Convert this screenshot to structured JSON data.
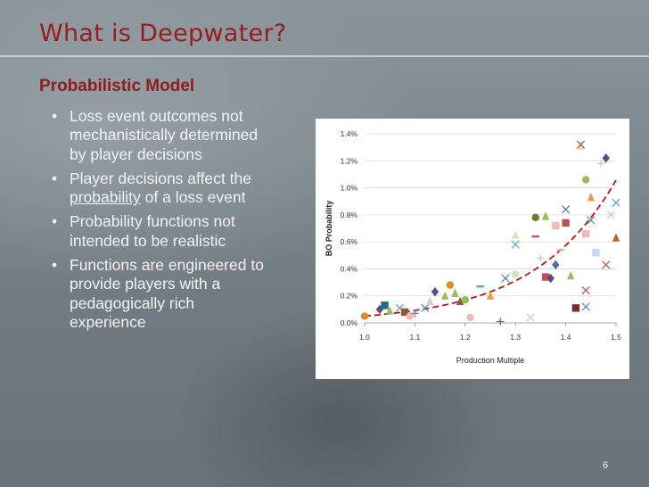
{
  "slide": {
    "title": "What is Deepwater?",
    "subtitle": "Probabilistic Model",
    "bullets": [
      {
        "text": "Loss event outcomes not mechanistically determined by player decisions"
      },
      {
        "pre": "Player decisions affect the ",
        "underlined": "probability",
        "post": " of a loss event"
      },
      {
        "text": "Probability functions not intended to be realistic"
      },
      {
        "text": "Functions are engineered to provide players with a pedagogically rich experience"
      }
    ],
    "bullet_glyph": "•",
    "page_number": "6"
  },
  "colors": {
    "title": "#9a1c1c",
    "subtitle": "#8e1f1a",
    "bullet_text": "#f4f4f4",
    "trend_line": "#c0141a"
  },
  "chart_data": {
    "type": "scatter",
    "xlabel": "Production Multiple",
    "ylabel": "BO Probability",
    "xlim": [
      1.0,
      1.5
    ],
    "ylim": [
      0.0,
      0.014
    ],
    "xticks": [
      "1.0",
      "1.1",
      "1.2",
      "1.3",
      "1.4",
      "1.5"
    ],
    "yticks": [
      "0.0%",
      "0.2%",
      "0.4%",
      "0.6%",
      "0.8%",
      "1.0%",
      "1.2%",
      "1.4%"
    ],
    "grid": "horizontal",
    "legend": "none",
    "trendline": {
      "style": "dashed",
      "shape": "exponential",
      "y0": 0.0005,
      "k": 6.1
    },
    "points": [
      {
        "x": 1.0,
        "y": 0.0005,
        "m": "circle",
        "c": "#e08a2c"
      },
      {
        "x": 1.03,
        "y": 0.001,
        "m": "diamond",
        "c": "#5b4a8c"
      },
      {
        "x": 1.04,
        "y": 0.0013,
        "m": "square",
        "c": "#1f6f79"
      },
      {
        "x": 1.05,
        "y": 0.0009,
        "m": "triangle",
        "c": "#9bbb59"
      },
      {
        "x": 1.07,
        "y": 0.0011,
        "m": "x",
        "c": "#6f8fc4"
      },
      {
        "x": 1.08,
        "y": 0.0008,
        "m": "square",
        "c": "#8b5a3c"
      },
      {
        "x": 1.09,
        "y": 0.0005,
        "m": "circle",
        "c": "#f2b8b8"
      },
      {
        "x": 1.1,
        "y": 0.0007,
        "m": "plus",
        "c": "#4f7fbf"
      },
      {
        "x": 1.12,
        "y": 0.0011,
        "m": "x",
        "c": "#4f7fbf"
      },
      {
        "x": 1.13,
        "y": 0.0016,
        "m": "triangle",
        "c": "#cfcfcf"
      },
      {
        "x": 1.14,
        "y": 0.0023,
        "m": "diamond",
        "c": "#5b4a8c"
      },
      {
        "x": 1.16,
        "y": 0.002,
        "m": "triangle",
        "c": "#9bbb59"
      },
      {
        "x": 1.17,
        "y": 0.0028,
        "m": "circle",
        "c": "#e08a2c"
      },
      {
        "x": 1.18,
        "y": 0.0022,
        "m": "triangle",
        "c": "#9bbb59"
      },
      {
        "x": 1.19,
        "y": 0.0016,
        "m": "triangle",
        "c": "#8b5a3c"
      },
      {
        "x": 1.2,
        "y": 0.0017,
        "m": "circle",
        "c": "#9bbb59"
      },
      {
        "x": 1.21,
        "y": 0.0004,
        "m": "circle",
        "c": "#f2b8b8"
      },
      {
        "x": 1.23,
        "y": 0.0027,
        "m": "dash",
        "c": "#4bacc6"
      },
      {
        "x": 1.25,
        "y": 0.002,
        "m": "triangle",
        "c": "#f79646"
      },
      {
        "x": 1.27,
        "y": 0.0001,
        "m": "plus",
        "c": "#8b5a3c"
      },
      {
        "x": 1.28,
        "y": 0.0033,
        "m": "x",
        "c": "#4f7fbf"
      },
      {
        "x": 1.3,
        "y": 0.0036,
        "m": "circle",
        "c": "#d8e4bc"
      },
      {
        "x": 1.3,
        "y": 0.0058,
        "m": "x",
        "c": "#4bacc6"
      },
      {
        "x": 1.3,
        "y": 0.0065,
        "m": "triangle",
        "c": "#d8e4bc"
      },
      {
        "x": 1.33,
        "y": 0.0004,
        "m": "x",
        "c": "#f2b8b8"
      },
      {
        "x": 1.34,
        "y": 0.0078,
        "m": "circle",
        "c": "#6b7f2b"
      },
      {
        "x": 1.34,
        "y": 0.0064,
        "m": "dash",
        "c": "#c0504d"
      },
      {
        "x": 1.35,
        "y": 0.0048,
        "m": "plus",
        "c": "#b7c7e0"
      },
      {
        "x": 1.36,
        "y": 0.0079,
        "m": "triangle",
        "c": "#9bbb59"
      },
      {
        "x": 1.36,
        "y": 0.0034,
        "m": "square",
        "c": "#c0504d"
      },
      {
        "x": 1.37,
        "y": 0.0033,
        "m": "diamond",
        "c": "#5b4a8c"
      },
      {
        "x": 1.38,
        "y": 0.0043,
        "m": "diamond",
        "c": "#4f6fa0"
      },
      {
        "x": 1.38,
        "y": 0.0072,
        "m": "square",
        "c": "#f2b8b8"
      },
      {
        "x": 1.39,
        "y": 0.0054,
        "m": "dash",
        "c": "#d8c08c"
      },
      {
        "x": 1.4,
        "y": 0.0074,
        "m": "square",
        "c": "#c0504d"
      },
      {
        "x": 1.4,
        "y": 0.0084,
        "m": "x",
        "c": "#4f6fa0"
      },
      {
        "x": 1.41,
        "y": 0.0035,
        "m": "triangle",
        "c": "#9bbb59"
      },
      {
        "x": 1.42,
        "y": 0.0011,
        "m": "square",
        "c": "#7b2b2b"
      },
      {
        "x": 1.43,
        "y": 0.0131,
        "m": "triangle",
        "c": "#d8e4bc"
      },
      {
        "x": 1.43,
        "y": 0.0132,
        "m": "x",
        "c": "#c0504d"
      },
      {
        "x": 1.44,
        "y": 0.0106,
        "m": "circle",
        "c": "#9bbb59"
      },
      {
        "x": 1.44,
        "y": 0.0066,
        "m": "square",
        "c": "#f2b8b8"
      },
      {
        "x": 1.44,
        "y": 0.0024,
        "m": "x",
        "c": "#c0504d"
      },
      {
        "x": 1.44,
        "y": 0.0012,
        "m": "x",
        "c": "#4f7fbf"
      },
      {
        "x": 1.45,
        "y": 0.0093,
        "m": "triangle",
        "c": "#f79646"
      },
      {
        "x": 1.45,
        "y": 0.0076,
        "m": "x",
        "c": "#4f7fbf"
      },
      {
        "x": 1.46,
        "y": 0.0052,
        "m": "square",
        "c": "#c6d9f1"
      },
      {
        "x": 1.47,
        "y": 0.0118,
        "m": "plus",
        "c": "#b7c7e0"
      },
      {
        "x": 1.48,
        "y": 0.0122,
        "m": "diamond",
        "c": "#5b4a8c"
      },
      {
        "x": 1.48,
        "y": 0.0043,
        "m": "x",
        "c": "#c0504d"
      },
      {
        "x": 1.49,
        "y": 0.008,
        "m": "x",
        "c": "#b7c7e0"
      },
      {
        "x": 1.5,
        "y": 0.0089,
        "m": "x",
        "c": "#4bacc6"
      },
      {
        "x": 1.5,
        "y": 0.0063,
        "m": "triangle",
        "c": "#c06028"
      }
    ]
  }
}
